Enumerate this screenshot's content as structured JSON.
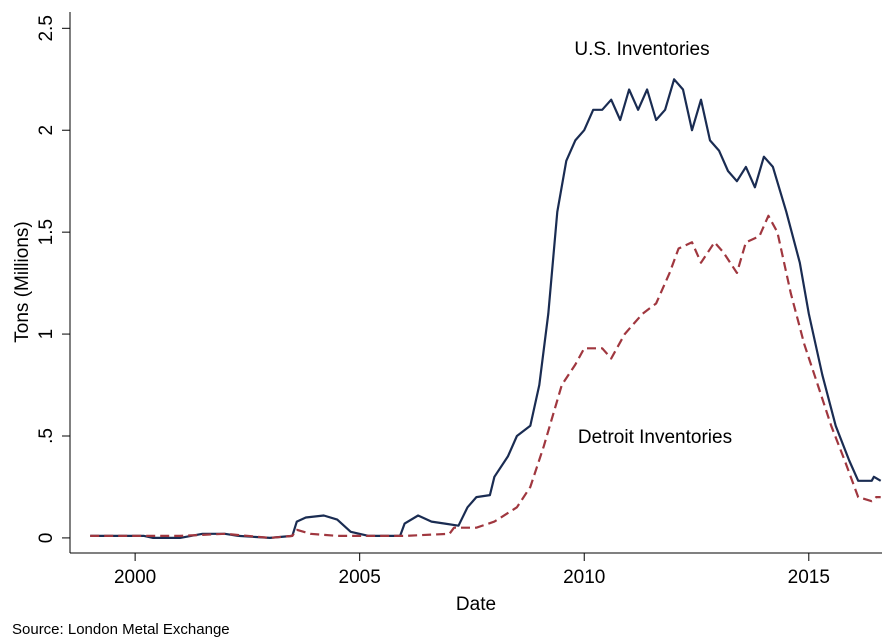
{
  "chart_data": {
    "type": "line",
    "xlabel": "Date",
    "ylabel": "Tons (Millions)",
    "note": "Source: London Metal Exchange",
    "annotations": [
      "U.S. Inventories",
      "Detroit Inventories"
    ],
    "xlim": [
      1998.55,
      2016.63
    ],
    "xticks": [
      2000,
      2005,
      2010,
      2015
    ],
    "ylim": [
      -0.074,
      2.58
    ],
    "yticks": [
      0,
      {
        "value": 0.5,
        "label": ".5"
      },
      1,
      1.5,
      2,
      2.5
    ],
    "grid": false,
    "series": [
      {
        "name": "U.S. Inventories",
        "color": "#1a2c52",
        "dashed": false,
        "x": [
          1999,
          2000.2,
          2000.4,
          2001,
          2001.5,
          2002,
          2002.3,
          2003,
          2003.5,
          2003.6,
          2003.8,
          2004.2,
          2004.5,
          2004.8,
          2005.2,
          2005.9,
          2006.0,
          2006.3,
          2006.6,
          2006.9,
          2007.2,
          2007.4,
          2007.6,
          2007.9,
          2008.0,
          2008.3,
          2008.5,
          2008.8,
          2009.0,
          2009.2,
          2009.4,
          2009.6,
          2009.8,
          2010.0,
          2010.2,
          2010.4,
          2010.6,
          2010.8,
          2011.0,
          2011.2,
          2011.4,
          2011.6,
          2011.8,
          2012.0,
          2012.2,
          2012.4,
          2012.6,
          2012.8,
          2013.0,
          2013.2,
          2013.4,
          2013.6,
          2013.8,
          2014.0,
          2014.2,
          2014.5,
          2014.8,
          2015.0,
          2015.3,
          2015.6,
          2015.9,
          2016.1,
          2016.4,
          2016.45,
          2016.6
        ],
        "values": [
          0.01,
          0.01,
          0.0,
          0.0,
          0.02,
          0.02,
          0.01,
          0.0,
          0.01,
          0.08,
          0.1,
          0.11,
          0.09,
          0.03,
          0.01,
          0.01,
          0.07,
          0.11,
          0.08,
          0.07,
          0.06,
          0.15,
          0.2,
          0.21,
          0.3,
          0.4,
          0.5,
          0.55,
          0.75,
          1.1,
          1.6,
          1.85,
          1.95,
          2.0,
          2.1,
          2.1,
          2.15,
          2.05,
          2.2,
          2.1,
          2.2,
          2.05,
          2.1,
          2.25,
          2.2,
          2.0,
          2.15,
          1.95,
          1.9,
          1.8,
          1.75,
          1.82,
          1.72,
          1.87,
          1.82,
          1.6,
          1.35,
          1.1,
          0.8,
          0.55,
          0.38,
          0.28,
          0.28,
          0.3,
          0.28
        ]
      },
      {
        "name": "Detroit Inventories",
        "color": "#a0373f",
        "dashed": true,
        "x": [
          1999,
          2001,
          2002,
          2003,
          2003.5,
          2003.6,
          2003.9,
          2004.5,
          2006,
          2007,
          2007.1,
          2007.6,
          2008,
          2008.5,
          2008.8,
          2009.1,
          2009.3,
          2009.5,
          2009.8,
          2010.0,
          2010.4,
          2010.6,
          2010.9,
          2011.1,
          2011.3,
          2011.6,
          2011.9,
          2012.1,
          2012.4,
          2012.6,
          2012.9,
          2013.1,
          2013.4,
          2013.6,
          2013.9,
          2014.1,
          2014.3,
          2014.6,
          2014.9,
          2015.2,
          2015.5,
          2015.8,
          2016.1,
          2016.4,
          2016.5,
          2016.6
        ],
        "values": [
          0.01,
          0.01,
          0.02,
          0.0,
          0.01,
          0.04,
          0.02,
          0.01,
          0.01,
          0.02,
          0.05,
          0.05,
          0.08,
          0.15,
          0.25,
          0.45,
          0.6,
          0.75,
          0.85,
          0.93,
          0.93,
          0.88,
          1.0,
          1.05,
          1.1,
          1.15,
          1.3,
          1.42,
          1.45,
          1.35,
          1.45,
          1.4,
          1.3,
          1.45,
          1.48,
          1.58,
          1.5,
          1.2,
          0.95,
          0.75,
          0.55,
          0.38,
          0.2,
          0.18,
          0.2,
          0.2
        ]
      }
    ]
  }
}
